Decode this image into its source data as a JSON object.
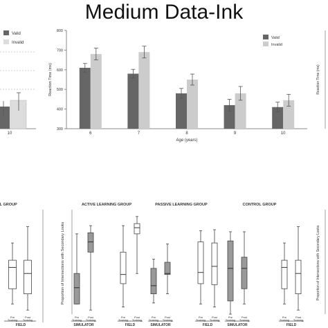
{
  "page": {
    "title": "Medium Data-Ink"
  },
  "chart_data": [
    {
      "type": "bar",
      "categories": [
        "6",
        "7",
        "8",
        "9",
        "10"
      ],
      "xlabel": "Age (years)",
      "ylabel": "Reaction Time (ms)",
      "ylim": [
        300,
        800
      ],
      "yticks": [
        "300",
        "400",
        "500",
        "600",
        "700",
        "800"
      ],
      "grid": false,
      "legend_position": "top-right",
      "series": [
        {
          "name": "Valid",
          "color": "#666666",
          "values": [
            610,
            580,
            480,
            420,
            410
          ],
          "errors": [
            22,
            22,
            25,
            30,
            25
          ]
        },
        {
          "name": "Invalid",
          "color": "#cccccc",
          "values": [
            680,
            690,
            550,
            480,
            445
          ],
          "errors": [
            30,
            30,
            28,
            35,
            30
          ]
        }
      ]
    },
    {
      "type": "bar",
      "partial": "left-cropped",
      "categories": [
        "10"
      ],
      "legend_position": "top-left",
      "grid": "dashed horizontal",
      "series": [
        {
          "name": "Valid",
          "color": "#666666"
        },
        {
          "name": "Invalid",
          "color": "#dddddd"
        }
      ]
    },
    {
      "type": "boxplot",
      "ylabel": "Proportion of Intersections with Secondary Looks",
      "ylim": [
        0,
        100
      ],
      "groups": [
        {
          "title": "ACTIVE LEARNING GROUP",
          "conditions": [
            {
              "label": "SIMULATOR\nDRIVE",
              "boxes": [
                {
                  "label": "Pre\nTraining",
                  "fill": "#999999",
                  "min": 10,
                  "q1": 10,
                  "median": 26,
                  "q3": 40,
                  "max": 79
                },
                {
                  "label": "Post\nTraining",
                  "fill": "#999999",
                  "min": 4,
                  "q1": 61,
                  "median": 71,
                  "q3": 80,
                  "max": 87
                }
              ]
            },
            {
              "label": "FIELD\nDRIVE",
              "boxes": [
                {
                  "label": "Pre\nTraining",
                  "fill": "#ffffff",
                  "min": 7,
                  "q1": 30,
                  "median": 39,
                  "q3": 61,
                  "max": 87
                },
                {
                  "label": "Post\nTraining",
                  "fill": "#ffffff",
                  "min": 40,
                  "q1": 79,
                  "median": 85,
                  "q3": 89,
                  "max": 96
                }
              ]
            }
          ]
        },
        {
          "title": "PASSIVE LEARNING GROUP",
          "conditions": [
            {
              "label": "SIMULATOR\nDRIVE",
              "boxes": [
                {
                  "label": "Pre\nTraining",
                  "fill": "#999999",
                  "min": 11,
                  "q1": 20,
                  "median": 28,
                  "q3": 45,
                  "max": 54
                },
                {
                  "label": "Post\nTraining",
                  "fill": "#999999",
                  "min": 20,
                  "q1": 39,
                  "median": 40,
                  "q3": 51,
                  "max": 69
                }
              ]
            },
            {
              "label": "FIELD\nDRIVE",
              "boxes": [
                {
                  "label": "Pre\nTraining",
                  "fill": "#ffffff",
                  "min": 10,
                  "q1": 30,
                  "median": 41,
                  "q3": 71,
                  "max": 82
                },
                {
                  "label": "Post\nTraining",
                  "fill": "#ffffff",
                  "min": 7,
                  "q1": 29,
                  "median": 47,
                  "q3": 70,
                  "max": 83
                }
              ]
            }
          ]
        },
        {
          "title": "CONTROL GROUP",
          "conditions": [
            {
              "label": "SIMULATOR\nDRIVE",
              "boxes": [
                {
                  "label": "Pre\nTraining",
                  "fill": "#999999",
                  "min": 0,
                  "q1": 13,
                  "median": 45,
                  "q3": 72,
                  "max": 81
                },
                {
                  "label": "Post\nTraining",
                  "fill": "#999999",
                  "min": 10,
                  "q1": 25,
                  "median": 45,
                  "q3": 56,
                  "max": 81
                }
              ]
            },
            {
              "label": "FIELD\nDRIVE",
              "boxes": [
                {
                  "label": "Pre\nTraining",
                  "fill": "#ffffff",
                  "min": 10,
                  "q1": 25,
                  "median": 46,
                  "q3": 53,
                  "max": 70
                },
                {
                  "label": "Post\nTraining",
                  "fill": "#ffffff",
                  "min": 4,
                  "q1": 20,
                  "median": 40,
                  "q3": 53,
                  "max": 86
                }
              ]
            }
          ]
        }
      ]
    },
    {
      "type": "boxplot",
      "partial": "left-cropped",
      "title": "OL GROUP",
      "conditions": [
        {
          "label": "FIELD\nDRIVE",
          "boxes": [
            {
              "label": "Pre\nTraining",
              "fill": "#ffffff",
              "min": 10,
              "q1": 25,
              "median": 46,
              "q3": 53,
              "max": 70
            },
            {
              "label": "Post\nTraining",
              "fill": "#ffffff",
              "min": 4,
              "q1": 20,
              "median": 40,
              "q3": 53,
              "max": 86
            }
          ]
        }
      ]
    },
    {
      "type": "partial",
      "partial": "right-cropped",
      "ylabel_top": "Reaction Time (ms)",
      "ylabel_bottom": "Proportion of Intersections with Secondary Looks"
    }
  ]
}
